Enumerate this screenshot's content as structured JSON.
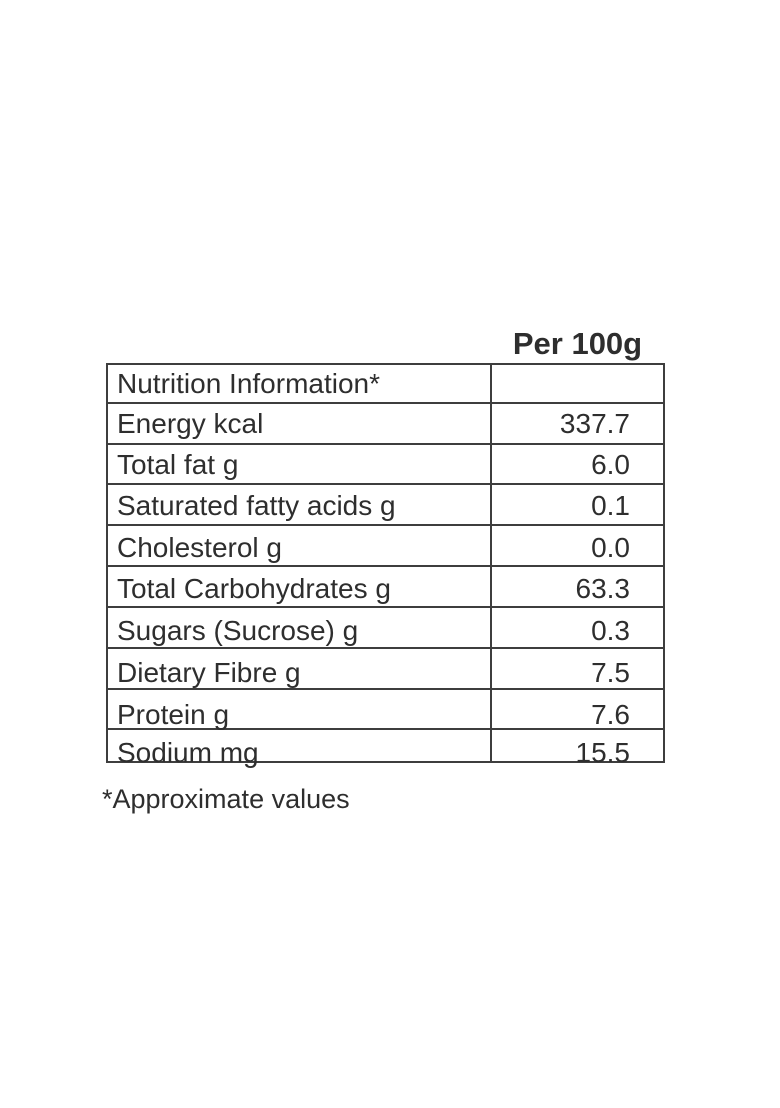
{
  "table": {
    "column_header": "Per 100g",
    "header_row_label": "Nutrition Information*",
    "rows": [
      {
        "label": "Energy kcal",
        "value": "337.7"
      },
      {
        "label": "Total fat g",
        "value": "6.0"
      },
      {
        "label": "Saturated fatty acids g",
        "value": "0.1"
      },
      {
        "label": "Cholesterol g",
        "value": "0.0"
      },
      {
        "label": "Total Carbohydrates g",
        "value": "63.3"
      },
      {
        "label": "Sugars (Sucrose) g",
        "value": "0.3"
      },
      {
        "label": "Dietary Fibre g",
        "value": "7.5"
      },
      {
        "label": "Protein g",
        "value": "7.6"
      },
      {
        "label": "Sodium mg",
        "value": "15.5"
      }
    ],
    "footnote": "*Approximate values",
    "colors": {
      "background": "#ffffff",
      "text": "#2e2e2e",
      "border": "#3e3e3e"
    }
  }
}
